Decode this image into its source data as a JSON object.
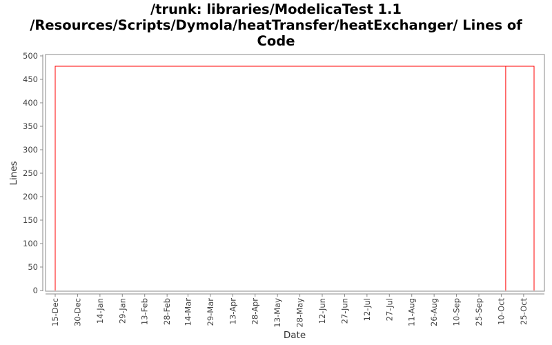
{
  "chart_data": {
    "type": "line",
    "title_lines": [
      "/trunk: libraries/ModelicaTest 1.1",
      "/Resources/Scripts/Dymola/heatTransfer/heatExchanger/ Lines of",
      "Code"
    ],
    "xlabel": "Date",
    "ylabel": "Lines",
    "ylim": [
      0,
      500
    ],
    "yticks": [
      0,
      50,
      100,
      150,
      200,
      250,
      300,
      350,
      400,
      450,
      500
    ],
    "xticks": [
      "15-Dec",
      "30-Dec",
      "14-Jan",
      "29-Jan",
      "13-Feb",
      "28-Feb",
      "14-Mar",
      "29-Mar",
      "13-Apr",
      "28-Apr",
      "13-May",
      "28-May",
      "12-Jun",
      "27-Jun",
      "12-Jul",
      "27-Jul",
      "11-Aug",
      "26-Aug",
      "10-Sep",
      "25-Sep",
      "10-Oct",
      "25-Oct"
    ],
    "grid": false,
    "series": [
      {
        "color": "#ff0000",
        "points": [
          {
            "x": "15-Dec",
            "y": 0
          },
          {
            "x": "15-Dec",
            "y": 478
          },
          {
            "x": "13-Oct",
            "y": 478
          },
          {
            "x": "13-Oct",
            "y": 0
          },
          {
            "x": "13-Oct",
            "y": 478
          },
          {
            "x": "1-Nov",
            "y": 478
          },
          {
            "x": "1-Nov",
            "y": 0
          }
        ]
      }
    ]
  }
}
